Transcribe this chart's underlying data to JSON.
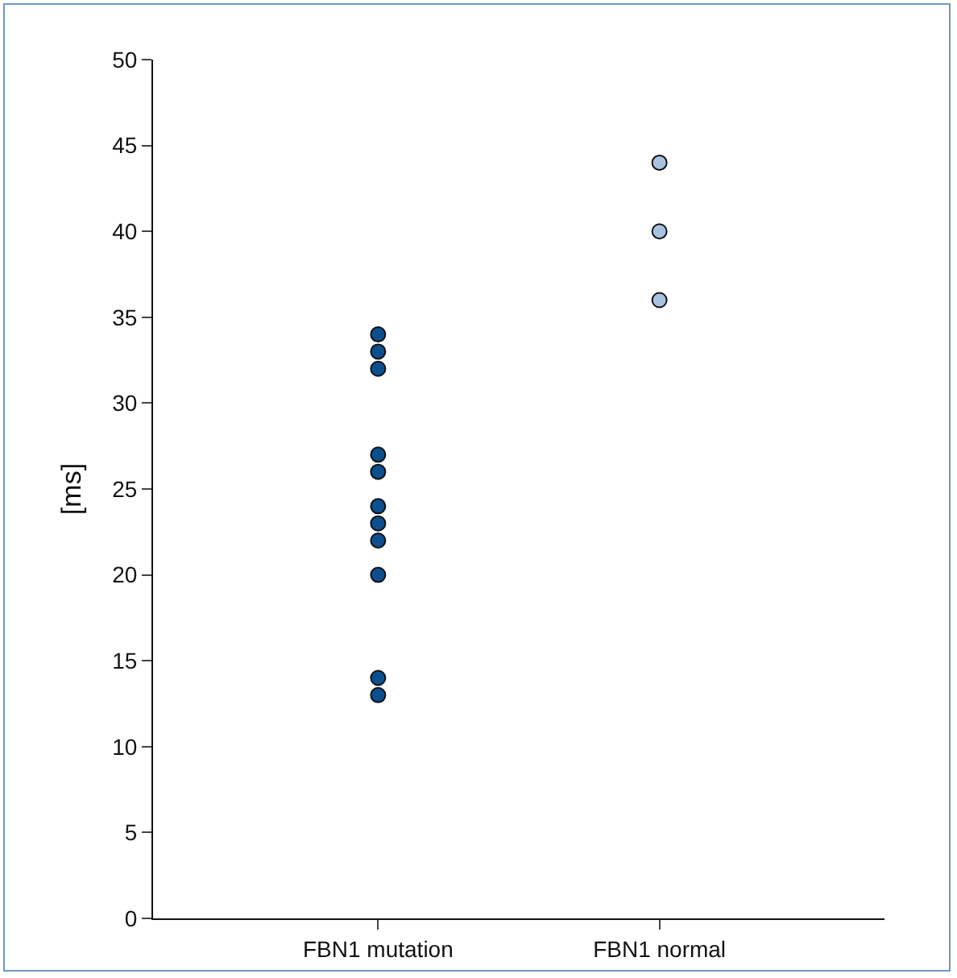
{
  "chart_data": {
    "type": "scatter",
    "ylabel": "[ms]",
    "categories": [
      "FBN1 mutation",
      "FBN1 normal"
    ],
    "series": [
      {
        "color": "#0b4f8f",
        "x": [
          "FBN1 mutation",
          "FBN1 mutation",
          "FBN1 mutation",
          "FBN1 mutation",
          "FBN1 mutation",
          "FBN1 mutation",
          "FBN1 mutation",
          "FBN1 mutation",
          "FBN1 mutation",
          "FBN1 mutation",
          "FBN1 mutation"
        ],
        "values": [
          34,
          33,
          32,
          27,
          26,
          24,
          23,
          22,
          20,
          14,
          13
        ]
      },
      {
        "color": "#a8c2e2",
        "x": [
          "FBN1 normal",
          "FBN1 normal",
          "FBN1 normal"
        ],
        "values": [
          44,
          40,
          36
        ]
      }
    ],
    "ylim": [
      0,
      50
    ],
    "yticks": [
      0,
      5,
      10,
      15,
      20,
      25,
      30,
      35,
      40,
      45,
      50
    ],
    "grid": false,
    "marker": "circle"
  }
}
